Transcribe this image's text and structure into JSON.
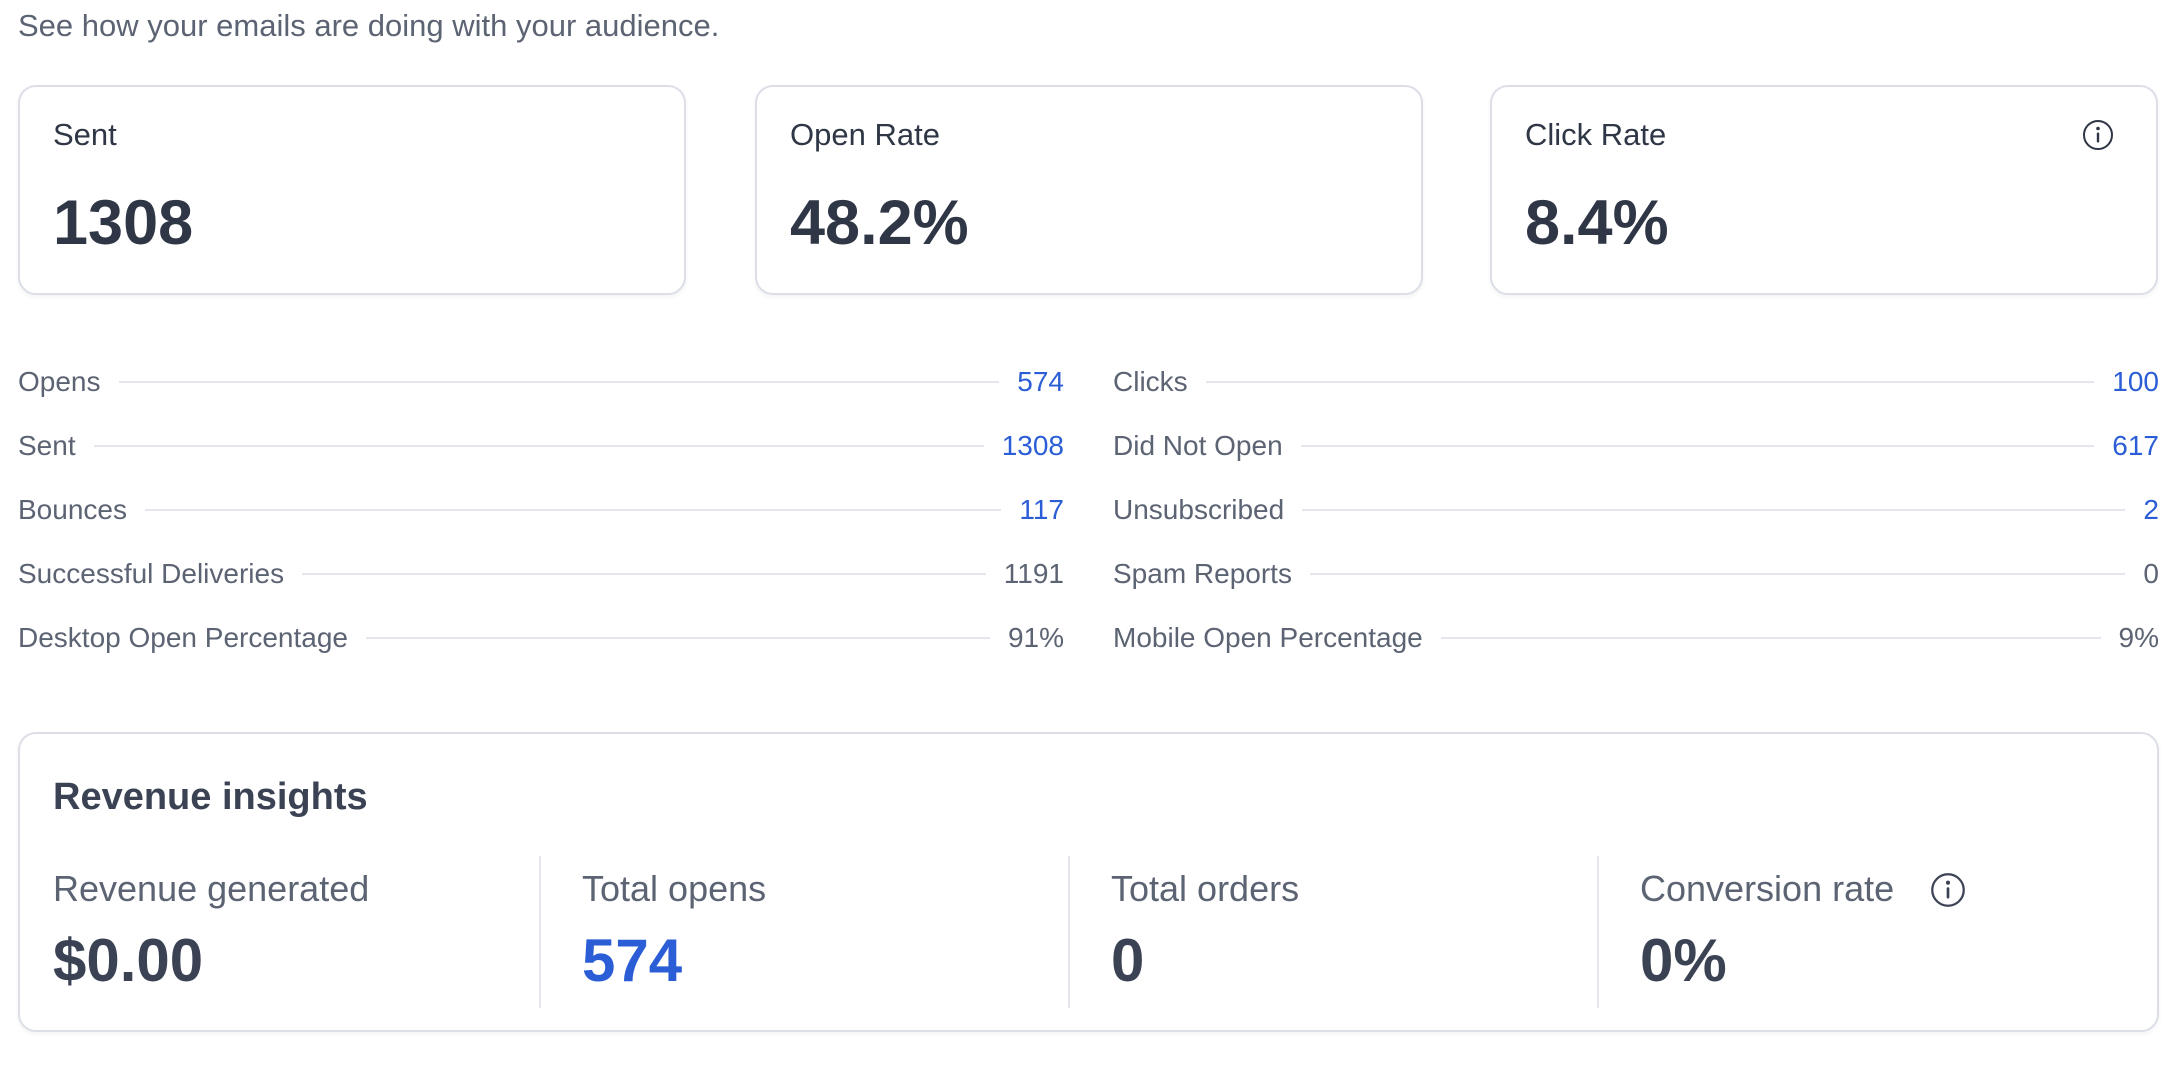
{
  "header": {
    "subtitle": "See how your emails are doing with your audience."
  },
  "kpis": [
    {
      "label": "Sent",
      "value": "1308"
    },
    {
      "label": "Open Rate",
      "value": "48.2%"
    },
    {
      "label": "Click Rate",
      "value": "8.4%",
      "icon": "info-icon"
    }
  ],
  "stats": {
    "left": [
      {
        "label": "Opens",
        "value": "574",
        "link": true
      },
      {
        "label": "Sent",
        "value": "1308",
        "link": true
      },
      {
        "label": "Bounces",
        "value": "117",
        "link": true
      },
      {
        "label": "Successful Deliveries",
        "value": "1191",
        "link": false
      },
      {
        "label": "Desktop Open Percentage",
        "value": "91%",
        "link": false
      }
    ],
    "right": [
      {
        "label": "Clicks",
        "value": "100",
        "link": true
      },
      {
        "label": "Did Not Open",
        "value": "617",
        "link": true
      },
      {
        "label": "Unsubscribed",
        "value": "2",
        "link": true
      },
      {
        "label": "Spam Reports",
        "value": "0",
        "link": false
      },
      {
        "label": "Mobile Open Percentage",
        "value": "9%",
        "link": false
      }
    ]
  },
  "revenue": {
    "title": "Revenue insights",
    "metrics": [
      {
        "label": "Revenue generated",
        "value": "$0.00",
        "link": false
      },
      {
        "label": "Total opens",
        "value": "574",
        "link": true
      },
      {
        "label": "Total orders",
        "value": "0",
        "link": false
      },
      {
        "label": "Conversion rate",
        "value": "0%",
        "link": false,
        "icon": "info-icon"
      }
    ]
  },
  "colors": {
    "text_dark": "#2f3645",
    "text_muted": "#5c6373",
    "link_blue": "#2b5ed6",
    "border": "#dcdfe8"
  }
}
